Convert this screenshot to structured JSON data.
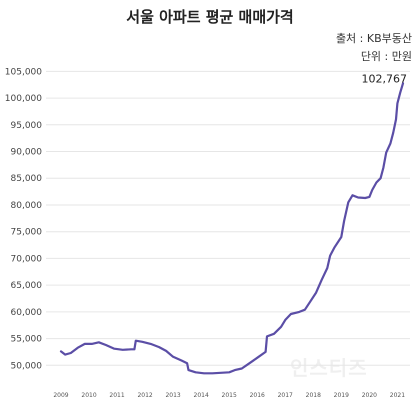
{
  "title": "서울 아파트 평균 매매가격",
  "source": "출처 : KB부동산",
  "unit": "단위 : 만원",
  "watermark": "인스티즈",
  "chart_data": {
    "type": "line",
    "title": "서울 아파트 평균 매매가격",
    "xlabel": "",
    "ylabel": "",
    "unit": "만원",
    "ylim": [
      48000,
      106000
    ],
    "xlim": [
      2009.0,
      2021.2
    ],
    "y_ticks": [
      50000,
      55000,
      60000,
      65000,
      70000,
      75000,
      80000,
      85000,
      90000,
      95000,
      100000,
      105000
    ],
    "y_tick_labels": [
      "50,000",
      "55,000",
      "60,000",
      "65,000",
      "70,000",
      "75,000",
      "80,000",
      "85,000",
      "90,000",
      "95,000",
      "100,000",
      "105,000"
    ],
    "x_ticks": [
      2009,
      2010,
      2011,
      2012,
      2013,
      2014,
      2015,
      2016,
      2017,
      2018,
      2019,
      2020,
      2021
    ],
    "x_tick_labels": [
      "2009",
      "2010",
      "2011",
      "2012",
      "2013",
      "2014",
      "2015",
      "2016",
      "2017",
      "2018",
      "2019",
      "2020",
      "2021"
    ],
    "grid": true,
    "legend": "none",
    "line_color": "#5b4ea6",
    "last_value_label": "102,767",
    "series": [
      {
        "values": [
          {
            "x": 2009.0,
            "y": 52600
          },
          {
            "x": 2009.15,
            "y": 52000
          },
          {
            "x": 2009.35,
            "y": 52300
          },
          {
            "x": 2009.6,
            "y": 53300
          },
          {
            "x": 2009.85,
            "y": 54000
          },
          {
            "x": 2010.1,
            "y": 54000
          },
          {
            "x": 2010.35,
            "y": 54300
          },
          {
            "x": 2010.6,
            "y": 53800
          },
          {
            "x": 2010.9,
            "y": 53100
          },
          {
            "x": 2011.2,
            "y": 52900
          },
          {
            "x": 2011.5,
            "y": 53000
          },
          {
            "x": 2011.62,
            "y": 53000
          },
          {
            "x": 2011.67,
            "y": 54600
          },
          {
            "x": 2011.9,
            "y": 54400
          },
          {
            "x": 2012.2,
            "y": 54000
          },
          {
            "x": 2012.5,
            "y": 53400
          },
          {
            "x": 2012.75,
            "y": 52700
          },
          {
            "x": 2013.0,
            "y": 51600
          },
          {
            "x": 2013.3,
            "y": 50900
          },
          {
            "x": 2013.5,
            "y": 50400
          },
          {
            "x": 2013.55,
            "y": 49100
          },
          {
            "x": 2013.8,
            "y": 48700
          },
          {
            "x": 2014.1,
            "y": 48500
          },
          {
            "x": 2014.4,
            "y": 48500
          },
          {
            "x": 2014.7,
            "y": 48600
          },
          {
            "x": 2015.0,
            "y": 48700
          },
          {
            "x": 2015.2,
            "y": 49100
          },
          {
            "x": 2015.45,
            "y": 49400
          },
          {
            "x": 2015.7,
            "y": 50300
          },
          {
            "x": 2016.0,
            "y": 51400
          },
          {
            "x": 2016.3,
            "y": 52500
          },
          {
            "x": 2016.35,
            "y": 55400
          },
          {
            "x": 2016.6,
            "y": 55900
          },
          {
            "x": 2016.85,
            "y": 57200
          },
          {
            "x": 2017.0,
            "y": 58500
          },
          {
            "x": 2017.2,
            "y": 59600
          },
          {
            "x": 2017.5,
            "y": 60000
          },
          {
            "x": 2017.7,
            "y": 60400
          },
          {
            "x": 2017.9,
            "y": 62000
          },
          {
            "x": 2018.1,
            "y": 63600
          },
          {
            "x": 2018.3,
            "y": 66000
          },
          {
            "x": 2018.5,
            "y": 68200
          },
          {
            "x": 2018.6,
            "y": 70500
          },
          {
            "x": 2018.75,
            "y": 72000
          },
          {
            "x": 2019.0,
            "y": 74000
          },
          {
            "x": 2019.1,
            "y": 77000
          },
          {
            "x": 2019.25,
            "y": 80500
          },
          {
            "x": 2019.4,
            "y": 81800
          },
          {
            "x": 2019.6,
            "y": 81400
          },
          {
            "x": 2019.85,
            "y": 81300
          },
          {
            "x": 2020.0,
            "y": 81500
          },
          {
            "x": 2020.1,
            "y": 82800
          },
          {
            "x": 2020.25,
            "y": 84200
          },
          {
            "x": 2020.4,
            "y": 85000
          },
          {
            "x": 2020.5,
            "y": 87000
          },
          {
            "x": 2020.6,
            "y": 89800
          },
          {
            "x": 2020.75,
            "y": 91500
          },
          {
            "x": 2020.85,
            "y": 93500
          },
          {
            "x": 2020.95,
            "y": 96000
          },
          {
            "x": 2021.0,
            "y": 99000
          },
          {
            "x": 2021.1,
            "y": 101000
          },
          {
            "x": 2021.2,
            "y": 102767
          }
        ]
      }
    ]
  }
}
